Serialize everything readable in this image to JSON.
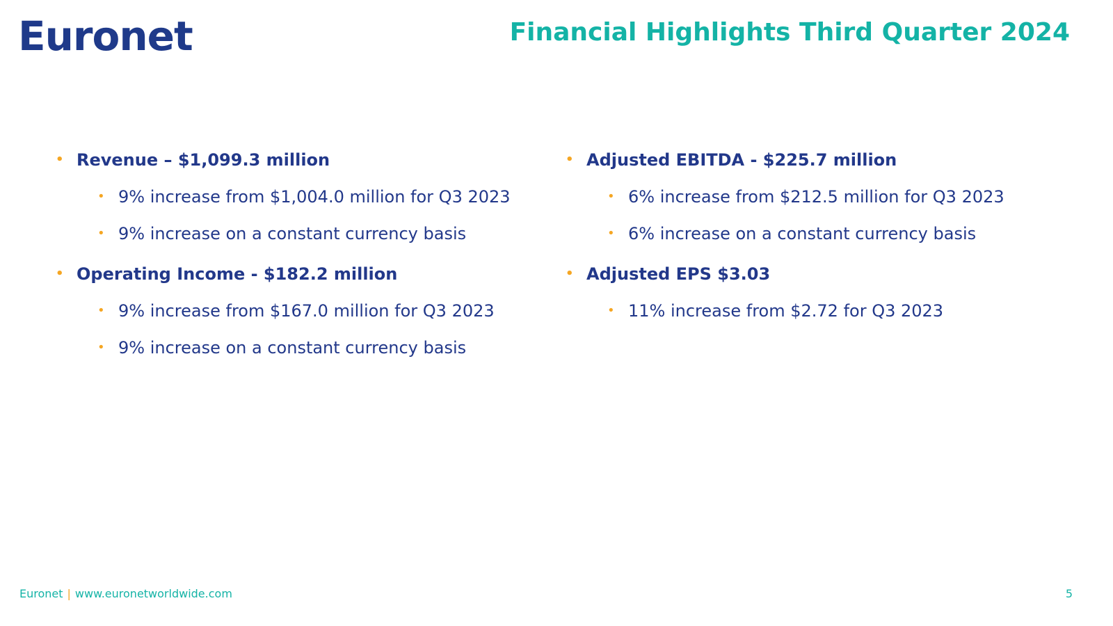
{
  "header": {
    "logo": "Euronet",
    "title": "Financial Highlights Third Quarter 2024"
  },
  "columns": [
    [
      {
        "heading": "Revenue – $1,099.3 million",
        "items": [
          "9% increase from $1,004.0 million for Q3 2023",
          "9% increase on a constant currency basis"
        ]
      },
      {
        "heading": "Operating Income - $182.2 million",
        "items": [
          "9% increase from $167.0 million for Q3 2023",
          "9% increase on a constant currency basis"
        ]
      }
    ],
    [
      {
        "heading": "Adjusted EBITDA - $225.7 million",
        "items": [
          "6% increase from $212.5 million for Q3 2023",
          "6% increase on a constant currency basis"
        ]
      },
      {
        "heading": "Adjusted EPS $3.03",
        "items": [
          "11% increase from $2.72 for Q3 2023"
        ]
      }
    ]
  ],
  "footer": {
    "brand": "Euronet",
    "separator": "|",
    "url": "www.euronetworldwide.com",
    "page": "5"
  }
}
